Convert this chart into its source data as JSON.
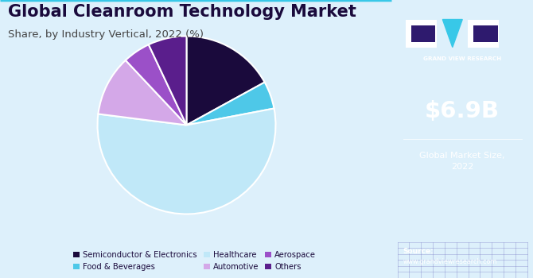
{
  "title": "Global Cleanroom Technology Market",
  "subtitle": "Share, by Industry Vertical, 2022 (%)",
  "bg_color": "#ddf0fb",
  "sidebar_color": "#2e1a6e",
  "market_size": "$6.9B",
  "market_label": "Global Market Size,\n2022",
  "source_text": "Source:\nwww.grandviewresearch.com",
  "slices": [
    {
      "label": "Semiconductor & Electronics",
      "value": 17,
      "color": "#1a0a3c"
    },
    {
      "label": "Food & Beverages",
      "value": 5,
      "color": "#4ec8e8"
    },
    {
      "label": "Healthcare",
      "value": 55,
      "color": "#c0e8f8"
    },
    {
      "label": "Automotive",
      "value": 11,
      "color": "#d4a8e8"
    },
    {
      "label": "Aerospace",
      "value": 5,
      "color": "#9b50c8"
    },
    {
      "label": "Others",
      "value": 7,
      "color": "#5a1e8c"
    }
  ],
  "title_color": "#1a0a3c",
  "subtitle_color": "#444444",
  "title_fontsize": 15,
  "subtitle_fontsize": 9.5,
  "legend_marker_size": 8
}
